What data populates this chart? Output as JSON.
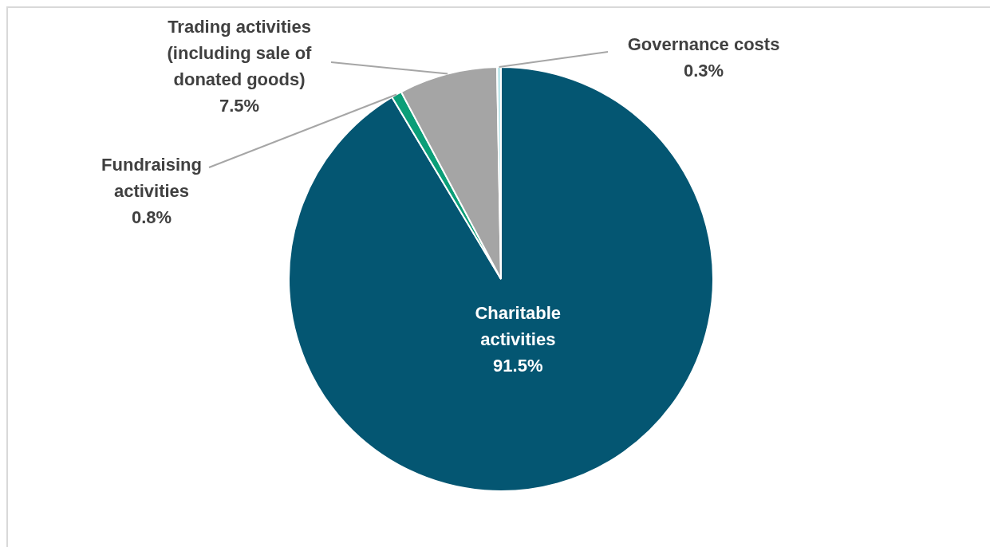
{
  "chart_data": {
    "type": "pie",
    "categories": [
      "Charitable activities",
      "Fundraising activities",
      "Trading activities (including sale of donated goods)",
      "Governance costs"
    ],
    "values": [
      91.5,
      0.8,
      7.5,
      0.3
    ],
    "value_labels": [
      "91.5%",
      "0.8%",
      "7.5%",
      "0.3%"
    ],
    "colors": [
      "#045672",
      "#0b9e78",
      "#a5a5a5",
      "#bfe8ec"
    ],
    "legend": false
  }
}
